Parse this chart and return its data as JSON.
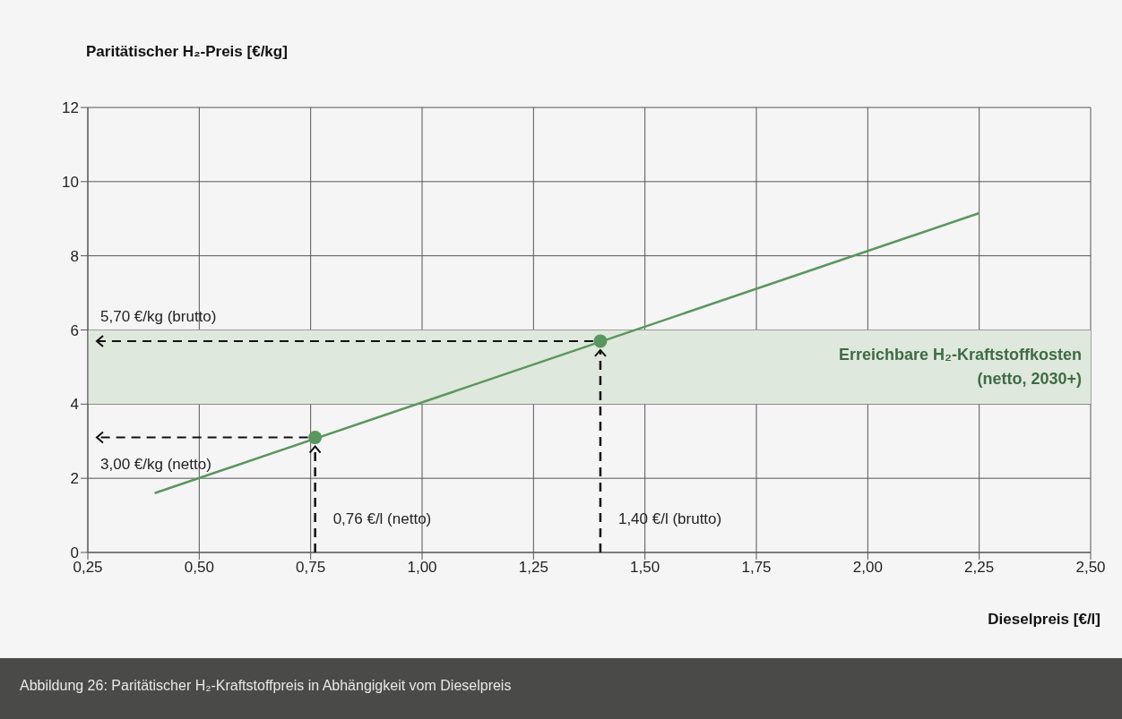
{
  "chart_data": {
    "type": "line",
    "ylabel": "Paritätischer H₂-Preis [€/kg]",
    "xlabel": "Dieselpreis [€/l]",
    "xlim": [
      0.25,
      2.5
    ],
    "xticks": [
      {
        "value": 0.25,
        "label": "0,25"
      },
      {
        "value": 0.5,
        "label": "0,50"
      },
      {
        "value": 0.75,
        "label": "0,75"
      },
      {
        "value": 1.0,
        "label": "1,00"
      },
      {
        "value": 1.25,
        "label": "1,25"
      },
      {
        "value": 1.5,
        "label": "1,50"
      },
      {
        "value": 1.75,
        "label": "1,75"
      },
      {
        "value": 2.0,
        "label": "2,00"
      },
      {
        "value": 2.25,
        "label": "2,25"
      },
      {
        "value": 2.5,
        "label": "2,50"
      }
    ],
    "ylim": [
      0,
      12
    ],
    "yticks": [
      0,
      2,
      4,
      6,
      8,
      10,
      12
    ],
    "grid": true,
    "legend": false,
    "series": [
      {
        "type": "line",
        "color": "#5a9660",
        "x": [
          0.4,
          2.25
        ],
        "values": [
          1.6,
          9.15
        ]
      },
      {
        "type": "scatter",
        "color": "#5a9660",
        "x": [
          0.76,
          1.4
        ],
        "values": [
          3.1,
          5.7
        ]
      }
    ],
    "bands": [
      {
        "axis": "y",
        "from": 4,
        "to": 6,
        "label": "Erreichbare H₂-Kraftstoffkosten\n(netto, 2030+)",
        "color": "#dfe8dc"
      }
    ],
    "annotations": [
      {
        "text": "5,70 €/kg (brutto)",
        "x": 1.4,
        "y": 5.7
      },
      {
        "text": "3,00 €/kg (netto)",
        "x": 0.76,
        "y": 3.1
      },
      "0,76 €/l (netto)",
      "1,40 €/l (brutto)",
      "Abbildung 26: Paritätischer H₂-Kraftstoffpreis in Abhängigkeit vom Dieselpreis"
    ]
  }
}
